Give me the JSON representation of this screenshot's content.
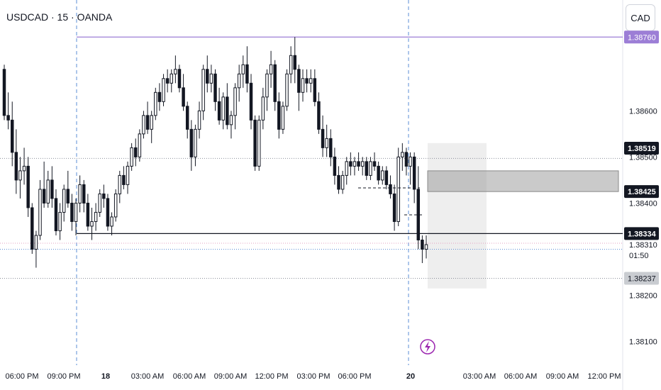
{
  "header": {
    "symbol_title": "USDCAD · 15 · OANDA",
    "currency_button": "CAD"
  },
  "colors": {
    "bull": "#ffffff",
    "bear": "#131722",
    "wick": "#131722",
    "purple": "#9c7ed6",
    "grid": "#8a8e99",
    "session_line": "#5b8ed6",
    "pink": "#e59fc0",
    "zone_light": "#dedede",
    "zone_dark": "#9e9e9e"
  },
  "chart_data": {
    "type": "candlestick",
    "title": "USDCAD · 15 · OANDA",
    "ylim": [
      1.38064,
      1.38765
    ],
    "y_ticks": [
      "1.38600",
      "1.38500",
      "1.38400",
      "1.38200",
      "1.38100"
    ],
    "x_ticks": [
      "06:00 PM",
      "09:00 PM",
      "18",
      "03:00 AM",
      "06:00 AM",
      "09:00 AM",
      "12:00 PM",
      "03:00 PM",
      "06:00 PM",
      "20",
      "03:00 AM",
      "06:00 AM",
      "09:00 AM",
      "12:00 PM"
    ],
    "price_labels": [
      {
        "value": 1.3876,
        "text": "1.38760",
        "style": "purple"
      },
      {
        "value": 1.38519,
        "text": "1.38519",
        "style": "dark"
      },
      {
        "value": 1.38425,
        "text": "1.38425",
        "style": "dark"
      },
      {
        "value": 1.38334,
        "text": "1.38334",
        "style": "dark"
      },
      {
        "value": 1.3831,
        "text": "1.38310",
        "style": "plain"
      },
      {
        "value": 1.38237,
        "text": "1.38237",
        "style": "gray"
      }
    ],
    "countdown": "01:50",
    "horizontal_levels": [
      {
        "name": "resistance",
        "value": 1.3876,
        "style": "purple"
      },
      {
        "name": "upper-dotted",
        "value": 1.38497,
        "style": "dotted"
      },
      {
        "name": "support",
        "value": 1.38334,
        "style": "solid"
      },
      {
        "name": "last-price",
        "value": 1.38313,
        "style": "pink-dotted"
      },
      {
        "name": "session-blue",
        "value": 1.383,
        "style": "blue-dotted"
      },
      {
        "name": "lower-dotted",
        "value": 1.38237,
        "style": "dotted"
      }
    ],
    "zones": [
      {
        "name": "target-zone",
        "top": 1.3853,
        "bottom": 1.38215,
        "style": "light"
      },
      {
        "name": "entry-zone",
        "top": 1.3847,
        "bottom": 1.38425,
        "style": "dark"
      }
    ],
    "candles": [
      [
        1.3869,
        1.387,
        1.3858,
        1.3859
      ],
      [
        1.3859,
        1.3864,
        1.3856,
        1.3858
      ],
      [
        1.3858,
        1.3862,
        1.3848,
        1.3851
      ],
      [
        1.3851,
        1.3856,
        1.3842,
        1.3845
      ],
      [
        1.3845,
        1.385,
        1.3841,
        1.3847
      ],
      [
        1.3847,
        1.3852,
        1.3844,
        1.3848
      ],
      [
        1.3848,
        1.385,
        1.3837,
        1.3839
      ],
      [
        1.3839,
        1.384,
        1.3829,
        1.383
      ],
      [
        1.383,
        1.3834,
        1.3826,
        1.3833
      ],
      [
        1.3833,
        1.3845,
        1.3832,
        1.3843
      ],
      [
        1.3843,
        1.3849,
        1.3839,
        1.384
      ],
      [
        1.384,
        1.3847,
        1.3839,
        1.3845
      ],
      [
        1.3845,
        1.3848,
        1.3839,
        1.3841
      ],
      [
        1.3841,
        1.3843,
        1.3833,
        1.3834
      ],
      [
        1.3834,
        1.384,
        1.3832,
        1.3838
      ],
      [
        1.3838,
        1.3844,
        1.3836,
        1.3843
      ],
      [
        1.3843,
        1.3847,
        1.3839,
        1.384
      ],
      [
        1.384,
        1.3842,
        1.3834,
        1.3836
      ],
      [
        1.3836,
        1.3841,
        1.3833,
        1.384
      ],
      [
        1.384,
        1.3846,
        1.3838,
        1.3844
      ],
      [
        1.3844,
        1.3845,
        1.3838,
        1.384
      ],
      [
        1.384,
        1.3842,
        1.3834,
        1.3835
      ],
      [
        1.3835,
        1.3839,
        1.3832,
        1.3836
      ],
      [
        1.3836,
        1.384,
        1.3834,
        1.3838
      ],
      [
        1.3838,
        1.3843,
        1.3837,
        1.3842
      ],
      [
        1.3842,
        1.3844,
        1.3839,
        1.3841
      ],
      [
        1.3841,
        1.3842,
        1.3834,
        1.3835
      ],
      [
        1.3835,
        1.3838,
        1.3833,
        1.3837
      ],
      [
        1.3837,
        1.3843,
        1.3836,
        1.3842
      ],
      [
        1.3842,
        1.3847,
        1.384,
        1.3846
      ],
      [
        1.3846,
        1.3848,
        1.3843,
        1.3844
      ],
      [
        1.3844,
        1.3849,
        1.3842,
        1.3848
      ],
      [
        1.3848,
        1.3853,
        1.3847,
        1.3852
      ],
      [
        1.3852,
        1.3854,
        1.3848,
        1.385
      ],
      [
        1.385,
        1.3856,
        1.3849,
        1.3855
      ],
      [
        1.3855,
        1.386,
        1.3854,
        1.3859
      ],
      [
        1.3859,
        1.3862,
        1.3855,
        1.3856
      ],
      [
        1.3856,
        1.386,
        1.3853,
        1.3859
      ],
      [
        1.3859,
        1.3865,
        1.3858,
        1.3864
      ],
      [
        1.3864,
        1.3866,
        1.386,
        1.3862
      ],
      [
        1.3862,
        1.3868,
        1.3861,
        1.3867
      ],
      [
        1.3867,
        1.3869,
        1.3864,
        1.3866
      ],
      [
        1.3866,
        1.3869,
        1.3864,
        1.3868
      ],
      [
        1.3868,
        1.3872,
        1.3866,
        1.3869
      ],
      [
        1.3869,
        1.387,
        1.3864,
        1.3865
      ],
      [
        1.3865,
        1.3868,
        1.386,
        1.3861
      ],
      [
        1.3861,
        1.3862,
        1.3854,
        1.3856
      ],
      [
        1.3856,
        1.3858,
        1.3847,
        1.385
      ],
      [
        1.385,
        1.3857,
        1.3848,
        1.3856
      ],
      [
        1.3856,
        1.3862,
        1.3854,
        1.386
      ],
      [
        1.386,
        1.387,
        1.3858,
        1.3869
      ],
      [
        1.3869,
        1.3872,
        1.3864,
        1.3866
      ],
      [
        1.3866,
        1.387,
        1.3864,
        1.3868
      ],
      [
        1.3868,
        1.3869,
        1.386,
        1.3862
      ],
      [
        1.3862,
        1.3865,
        1.3857,
        1.3858
      ],
      [
        1.3858,
        1.3864,
        1.3856,
        1.3863
      ],
      [
        1.3863,
        1.3866,
        1.3856,
        1.3857
      ],
      [
        1.3857,
        1.386,
        1.3854,
        1.3859
      ],
      [
        1.3859,
        1.3866,
        1.3856,
        1.3865
      ],
      [
        1.3865,
        1.387,
        1.3862,
        1.3868
      ],
      [
        1.3868,
        1.3872,
        1.3865,
        1.387
      ],
      [
        1.387,
        1.3874,
        1.3864,
        1.3866
      ],
      [
        1.3866,
        1.3868,
        1.3856,
        1.3858
      ],
      [
        1.3858,
        1.3859,
        1.3847,
        1.3848
      ],
      [
        1.3848,
        1.3859,
        1.3847,
        1.3858
      ],
      [
        1.3858,
        1.3865,
        1.3856,
        1.3863
      ],
      [
        1.3863,
        1.3869,
        1.386,
        1.3868
      ],
      [
        1.3868,
        1.3873,
        1.3865,
        1.387
      ],
      [
        1.387,
        1.3871,
        1.386,
        1.3862
      ],
      [
        1.3862,
        1.3864,
        1.3854,
        1.3856
      ],
      [
        1.3856,
        1.3862,
        1.3855,
        1.3861
      ],
      [
        1.3861,
        1.3869,
        1.386,
        1.3868
      ],
      [
        1.3868,
        1.3874,
        1.3866,
        1.3872
      ],
      [
        1.3872,
        1.3876,
        1.3866,
        1.3869
      ],
      [
        1.3869,
        1.387,
        1.386,
        1.3864
      ],
      [
        1.3864,
        1.3869,
        1.3862,
        1.3867
      ],
      [
        1.3867,
        1.3869,
        1.3864,
        1.3866
      ],
      [
        1.3866,
        1.3869,
        1.3864,
        1.3867
      ],
      [
        1.3867,
        1.3869,
        1.3861,
        1.3862
      ],
      [
        1.3862,
        1.3864,
        1.3855,
        1.3856
      ],
      [
        1.3856,
        1.3859,
        1.385,
        1.3852
      ],
      [
        1.3852,
        1.3857,
        1.385,
        1.3854
      ],
      [
        1.3854,
        1.3856,
        1.3848,
        1.385
      ],
      [
        1.385,
        1.3852,
        1.3844,
        1.3846
      ],
      [
        1.3846,
        1.3848,
        1.3842,
        1.3843
      ],
      [
        1.3843,
        1.3847,
        1.3842,
        1.3846
      ],
      [
        1.3846,
        1.385,
        1.3844,
        1.3849
      ],
      [
        1.3849,
        1.3851,
        1.3846,
        1.3848
      ],
      [
        1.3848,
        1.385,
        1.3846,
        1.3849
      ],
      [
        1.3849,
        1.3851,
        1.3847,
        1.3848
      ],
      [
        1.3848,
        1.385,
        1.3846,
        1.3849
      ],
      [
        1.3849,
        1.385,
        1.3845,
        1.3846
      ],
      [
        1.3846,
        1.385,
        1.3845,
        1.3849
      ],
      [
        1.3849,
        1.3851,
        1.3847,
        1.3848
      ],
      [
        1.3848,
        1.3849,
        1.3844,
        1.3845
      ],
      [
        1.3845,
        1.3848,
        1.3844,
        1.3847
      ],
      [
        1.3847,
        1.3848,
        1.3843,
        1.3844
      ],
      [
        1.3844,
        1.3846,
        1.3841,
        1.3842
      ],
      [
        1.3842,
        1.3844,
        1.3834,
        1.3836
      ],
      [
        1.3836,
        1.3852,
        1.3835,
        1.385
      ],
      [
        1.385,
        1.3853,
        1.3847,
        1.3851
      ],
      [
        1.3851,
        1.3852,
        1.3846,
        1.3848
      ],
      [
        1.3848,
        1.3851,
        1.3844,
        1.385
      ],
      [
        1.385,
        1.3851,
        1.384,
        1.3843
      ],
      [
        1.3843,
        1.3848,
        1.383,
        1.3832
      ],
      [
        1.3832,
        1.3833,
        1.3827,
        1.383
      ],
      [
        1.383,
        1.3833,
        1.3828,
        1.3831
      ]
    ]
  }
}
